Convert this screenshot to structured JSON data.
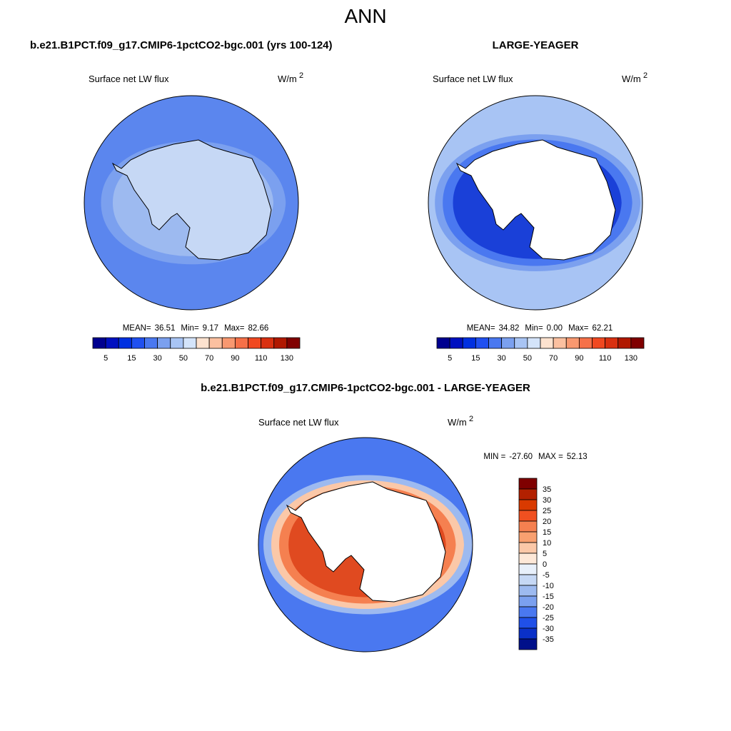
{
  "title": "ANN",
  "panels": [
    {
      "title": "b.e21.B1PCT.f09_g17.CMIP6-1pctCO2-bgc.001 (yrs 100-124)",
      "variable": "Surface net LW flux",
      "units": "W/m",
      "units_exponent": "2",
      "stats": [
        {
          "label": "MEAN=",
          "value": "36.51"
        },
        {
          "label": "Min=",
          "value": "9.17"
        },
        {
          "label": "Max=",
          "value": "82.66"
        }
      ]
    },
    {
      "title": "LARGE-YEAGER",
      "variable": "Surface net LW flux",
      "units": "W/m",
      "units_exponent": "2",
      "stats": [
        {
          "label": "MEAN=",
          "value": "34.82"
        },
        {
          "label": "Min=",
          "value": "0.00"
        },
        {
          "label": "Max=",
          "value": "62.21"
        }
      ]
    }
  ],
  "colorbar": {
    "colors": [
      "#00008f",
      "#0010c0",
      "#0030e0",
      "#2050f0",
      "#4a78f0",
      "#7ba0ef",
      "#a8c4f4",
      "#d4e4fa",
      "#fde2cf",
      "#fbc0a0",
      "#f89870",
      "#f57048",
      "#f04820",
      "#d93010",
      "#b01800",
      "#800000"
    ],
    "labels": [
      "5",
      "15",
      "30",
      "50",
      "70",
      "90",
      "110",
      "130"
    ]
  },
  "difference": {
    "title": "b.e21.B1PCT.f09_g17.CMIP6-1pctCO2-bgc.001 - LARGE-YEAGER",
    "variable": "Surface net LW flux",
    "units": "W/m",
    "units_exponent": "2",
    "stats": [
      {
        "label": "MIN =",
        "value": "-27.60"
      },
      {
        "label": "MAX =",
        "value": "52.13"
      }
    ],
    "colorbar": {
      "colors": [
        "#7f0000",
        "#b22000",
        "#d93a00",
        "#f05020",
        "#f58050",
        "#f8a070",
        "#fbc8a8",
        "#fde8d8",
        "#e8f0fb",
        "#c6d8f5",
        "#9dbaf0",
        "#7ba0ef",
        "#4a78f0",
        "#2050e8",
        "#0a30c8",
        "#00108a"
      ],
      "labels": [
        "35",
        "30",
        "25",
        "20",
        "15",
        "10",
        "5",
        "0",
        "-5",
        "-10",
        "-15",
        "-20",
        "-25",
        "-30",
        "-35"
      ]
    }
  }
}
